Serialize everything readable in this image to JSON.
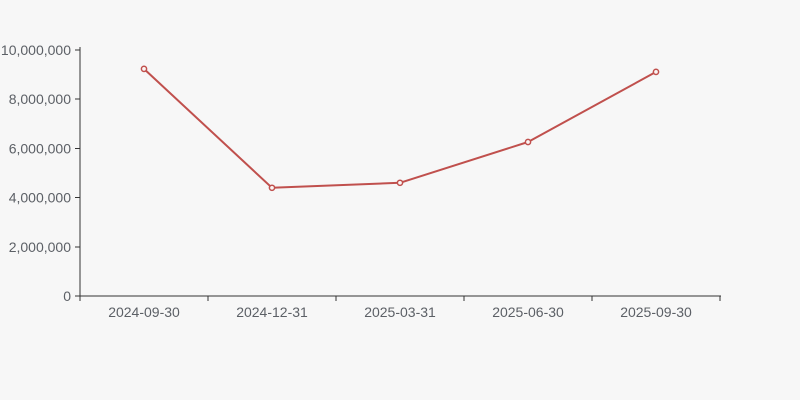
{
  "chart_data": {
    "type": "line",
    "title": "",
    "xlabel": "",
    "ylabel": "",
    "categories": [
      "2024-09-30",
      "2024-12-31",
      "2025-03-31",
      "2025-06-30",
      "2025-09-30"
    ],
    "series": [
      {
        "name": "",
        "values": [
          9230000,
          4400000,
          4600000,
          6260000,
          9110000
        ]
      }
    ],
    "ylim": [
      0,
      10000000
    ],
    "y_tick_interval": 2000000,
    "y_tick_labels": [
      "0",
      "2,000,000",
      "4,000,000",
      "6,000,000",
      "8,000,000",
      "10,000,000"
    ],
    "grid": false,
    "legend": false
  },
  "colors": {
    "background": "#f7f7f7",
    "line": "#c0504d",
    "marker_fill": "#fbf6f5",
    "axis": "#333333",
    "label_text": "#5c6066"
  }
}
